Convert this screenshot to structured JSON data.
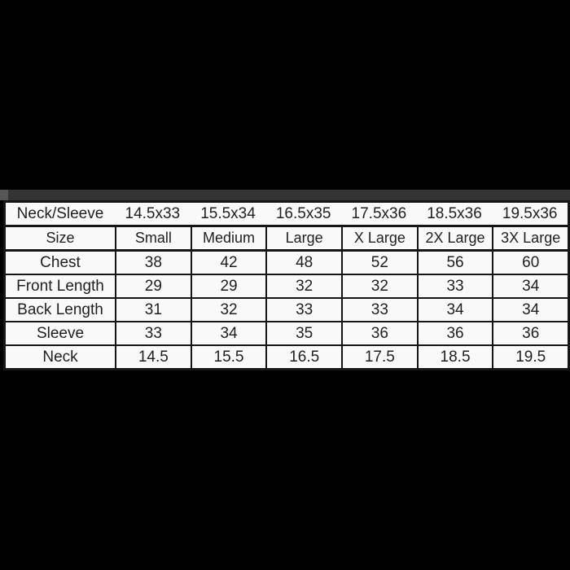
{
  "colors": {
    "background": "#010101",
    "table_background": "#f9f9f9",
    "border": "#161616",
    "text": "#1f1f1f",
    "strip": "#343434"
  },
  "chart_data": {
    "type": "table",
    "neck_sleeve_row": {
      "label": "Neck/Sleeve",
      "values": [
        "14.5x33",
        "15.5x34",
        "16.5x35",
        "17.5x36",
        "18.5x36",
        "19.5x36"
      ]
    },
    "size_row": {
      "label": "Size",
      "values": [
        "Small",
        "Medium",
        "Large",
        "X Large",
        "2X Large",
        "3X Large"
      ]
    },
    "rows": [
      {
        "label": "Chest",
        "values": [
          "38",
          "42",
          "48",
          "52",
          "56",
          "60"
        ]
      },
      {
        "label": "Front Length",
        "values": [
          "29",
          "29",
          "32",
          "32",
          "33",
          "34"
        ]
      },
      {
        "label": "Back Length",
        "values": [
          "31",
          "32",
          "33",
          "33",
          "34",
          "34"
        ]
      },
      {
        "label": "Sleeve",
        "values": [
          "33",
          "34",
          "35",
          "36",
          "36",
          "36"
        ]
      },
      {
        "label": "Neck",
        "values": [
          "14.5",
          "15.5",
          "16.5",
          "17.5",
          "18.5",
          "19.5"
        ]
      }
    ]
  }
}
